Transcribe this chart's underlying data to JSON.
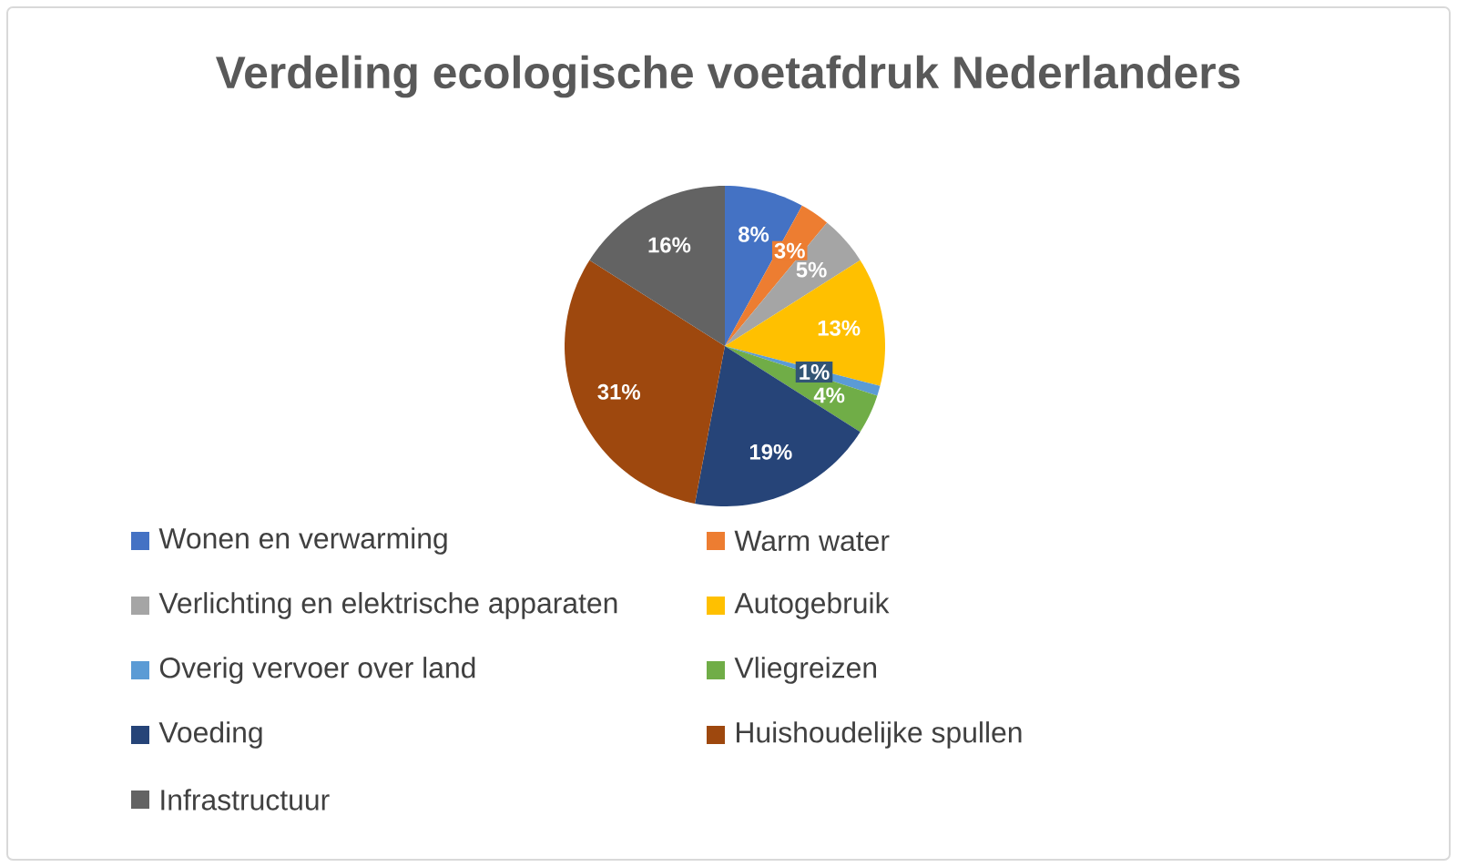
{
  "chart_data": {
    "type": "pie",
    "title": "Verdeling ecologische voetafdruk Nederlanders",
    "categories": [
      "Wonen en verwarming",
      "Warm water",
      "Verlichting en elektrische apparaten",
      "Autogebruik",
      "Overig vervoer over land",
      "Vliegreizen",
      "Voeding",
      "Huishoudelijke spullen",
      "Infrastructuur"
    ],
    "values": [
      8,
      3,
      5,
      13,
      1,
      4,
      19,
      31,
      16
    ],
    "value_labels": [
      "8%",
      "3%",
      "5%",
      "13%",
      "1%",
      "4%",
      "19%",
      "31%",
      "16%"
    ],
    "colors": [
      "#4472c4",
      "#ed7d31",
      "#a5a5a5",
      "#ffc000",
      "#5b9bd5",
      "#70ad47",
      "#264478",
      "#9e480e",
      "#636363"
    ],
    "legend": "bottom"
  }
}
